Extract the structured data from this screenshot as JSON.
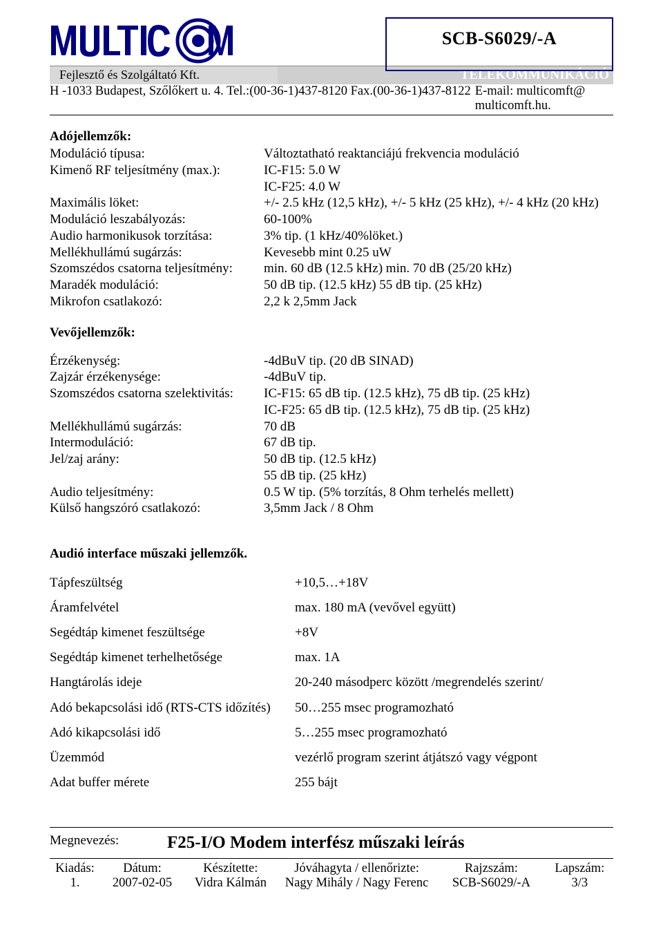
{
  "header": {
    "model": "SCB-S6029/-A",
    "company_line": "Fejlesztő és Szolgáltató Kft.",
    "telecom": "TELEKOMMUNIKÁCIÓ",
    "address": "H -1033 Budapest, Szőlőkert u. 4.  Tel.:(00-36-1)437-8120  Fax.(00-36-1)437-8122",
    "email": "E-mail: multicomft@ multicomft.hu."
  },
  "tx": {
    "title": "Adójellemzők:",
    "rows": [
      {
        "l": "Moduláció típusa:",
        "v": "Változtatható reaktanciájú frekvencia moduláció"
      },
      {
        "l": "Kimenő RF teljesítmény (max.):",
        "v": "IC-F15: 5.0 W"
      },
      {
        "l": "",
        "v": "IC-F25: 4.0 W"
      },
      {
        "l": "Maximális löket:",
        "v": "+/- 2.5 kHz (12,5 kHz), +/- 5 kHz (25 kHz), +/- 4 kHz (20 kHz)"
      },
      {
        "l": "Moduláció leszabályozás:",
        "v": "60-100%"
      },
      {
        "l": "Audio harmonikusok torzítása:",
        "v": "3% tip. (1 kHz/40%löket.)"
      },
      {
        "l": "Mellékhullámú sugárzás:",
        "v": "Kevesebb mint 0.25 uW"
      },
      {
        "l": "Szomszédos csatorna teljesítmény:",
        "v": "min. 60 dB (12.5 kHz) min. 70 dB (25/20 kHz)"
      },
      {
        "l": "Maradék moduláció:",
        "v": "50 dB tip. (12.5 kHz) 55 dB tip. (25 kHz)"
      },
      {
        "l": "Mikrofon csatlakozó:",
        "v": "2,2 k 2,5mm Jack"
      }
    ]
  },
  "rx": {
    "title": "Vevőjellemzők:",
    "rows": [
      {
        "l": "Érzékenység:",
        "v": "-4dBuV tip. (20 dB SINAD)"
      },
      {
        "l": "Zajzár érzékenysége:",
        "v": "-4dBuV tip."
      },
      {
        "l": "Szomszédos csatorna szelektivitás:",
        "v": "IC-F15: 65 dB tip. (12.5 kHz), 75 dB tip. (25 kHz)"
      },
      {
        "l": "",
        "v": "IC-F25: 65 dB tip. (12.5 kHz), 75 dB tip. (25 kHz)"
      },
      {
        "l": "Mellékhullámú sugárzás:",
        "v": "70 dB"
      },
      {
        "l": "Intermoduláció:",
        "v": "67 dB tip."
      },
      {
        "l": "Jel/zaj arány:",
        "v": "50 dB tip. (12.5 kHz)"
      },
      {
        "l": "",
        "v": "55 dB tip. (25 kHz)"
      },
      {
        "l": "Audio teljesítmény:",
        "v": "0.5 W tip. (5% torzítás, 8 Ohm terhelés mellett)"
      },
      {
        "l": "Külső hangszóró csatlakozó:",
        "v": "3,5mm Jack / 8 Ohm"
      }
    ]
  },
  "audio": {
    "title": "Audió interface műszaki jellemzők.",
    "rows": [
      {
        "l": "Tápfeszültség",
        "v": "+10,5…+18V"
      },
      {
        "l": "Áramfelvétel",
        "v": "max. 180 mA (vevővel együtt)"
      },
      {
        "l": "Segédtáp kimenet feszültsége",
        "v": "+8V"
      },
      {
        "l": "Segédtáp kimenet terhelhetősége",
        "v": "max. 1A"
      },
      {
        "l": "Hangtárolás ideje",
        "v": "20-240 másodperc között  /megrendelés szerint/"
      },
      {
        "l": "Adó bekapcsolási idő (RTS-CTS időzítés)",
        "v": "50…255 msec programozható"
      },
      {
        "l": "Adó kikapcsolási idő",
        "v": "5…255 msec programozható"
      },
      {
        "l": "Üzemmód",
        "v": "vezérlő program szerint átjátszó vagy végpont"
      },
      {
        "l": "Adat buffer mérete",
        "v": "255 bájt"
      }
    ]
  },
  "footer": {
    "meglabel": "Megnevezés:",
    "doctitle": "F25-I/O Modem interfész műszaki leírás",
    "cols": {
      "h": [
        "Kiadás:",
        "Dátum:",
        "Készítette:",
        "Jóváhagyta / ellenőrizte:",
        "Rajzszám:",
        "Lapszám:"
      ],
      "v": [
        "1.",
        "2007-02-05",
        "Vidra Kálmán",
        "Nagy Mihály / Nagy Ferenc",
        "SCB-S6029/-A",
        "3/3"
      ]
    }
  },
  "logo_color": "#000080"
}
